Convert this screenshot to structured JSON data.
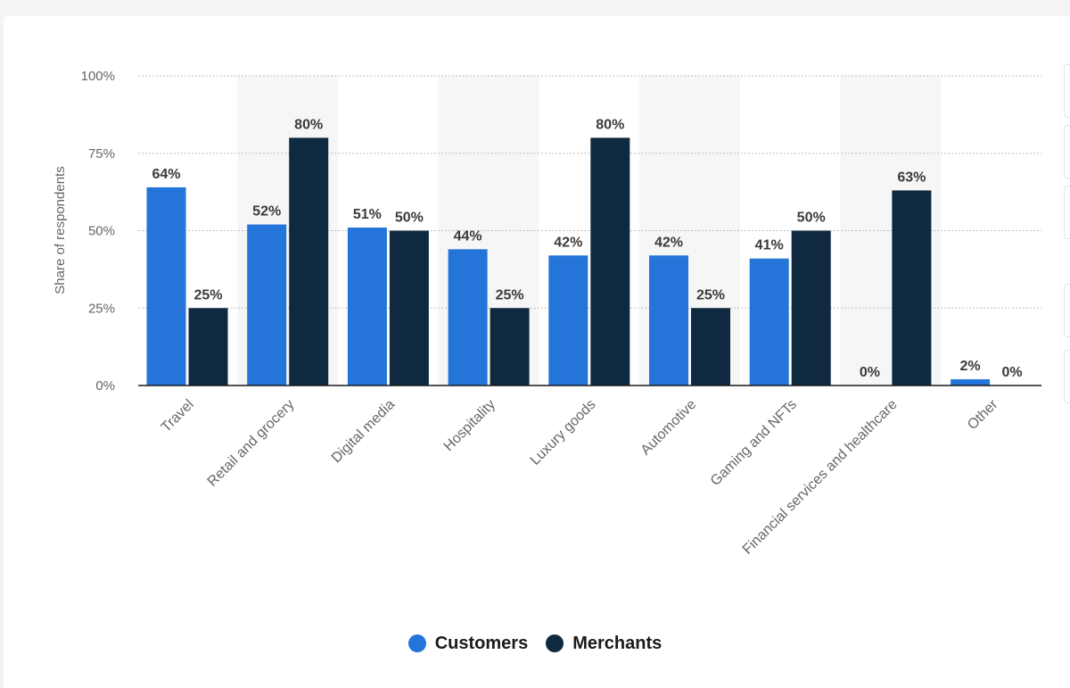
{
  "colors": {
    "customers": "#2474d9",
    "merchants": "#0f2a40",
    "grid": "#bdbdbd",
    "axis_text": "#666666",
    "label_text": "#3a3a3a",
    "band": "#f6f6f6"
  },
  "chart_data": {
    "type": "bar",
    "ylabel": "Share of respondents",
    "xlabel": "",
    "ylim": [
      0,
      100
    ],
    "yticks": [
      0,
      25,
      50,
      75,
      100
    ],
    "ytick_labels": [
      "0%",
      "25%",
      "50%",
      "75%",
      "100%"
    ],
    "grid": true,
    "legend_position": "bottom",
    "categories": [
      "Travel",
      "Retail and grocery",
      "Digital media",
      "Hospitality",
      "Luxury goods",
      "Automotive",
      "Gaming and NFTs",
      "Financial services and healthcare",
      "Other"
    ],
    "series": [
      {
        "name": "Customers",
        "color": "#2474d9",
        "values": [
          64,
          52,
          51,
          44,
          42,
          42,
          41,
          0,
          2
        ],
        "labels": [
          "64%",
          "52%",
          "51%",
          "44%",
          "42%",
          "42%",
          "41%",
          "0%",
          "2%"
        ]
      },
      {
        "name": "Merchants",
        "color": "#0f2a40",
        "values": [
          25,
          80,
          50,
          25,
          80,
          25,
          50,
          63,
          0
        ],
        "labels": [
          "25%",
          "80%",
          "50%",
          "25%",
          "80%",
          "25%",
          "50%",
          "63%",
          "0%"
        ]
      }
    ]
  },
  "legend": {
    "customers_label": "Customers",
    "merchants_label": "Merchants"
  }
}
